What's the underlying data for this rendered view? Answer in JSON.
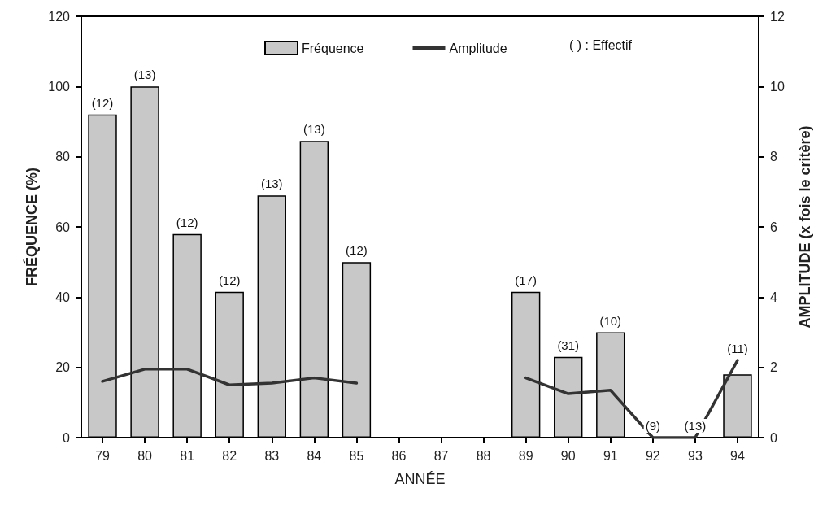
{
  "chart_data": {
    "type": "bar",
    "xlabel": "ANNÉE",
    "ylabel": "FRÉQUENCE (%)",
    "y2label": "AMPLITUDE (x fois le critère)",
    "categories": [
      "79",
      "80",
      "81",
      "82",
      "83",
      "84",
      "85",
      "86",
      "87",
      "88",
      "89",
      "90",
      "91",
      "92",
      "93",
      "94"
    ],
    "series": [
      {
        "name": "Fréquence",
        "color": "#c8c8c8",
        "values": [
          92,
          100,
          58,
          41.5,
          69,
          84.5,
          50,
          null,
          null,
          null,
          41.5,
          23,
          30,
          null,
          null,
          18
        ]
      },
      {
        "name": "Amplitude",
        "type": "line",
        "axis": "y2",
        "color": "#333333",
        "values": [
          1.6,
          1.95,
          1.95,
          1.5,
          1.55,
          1.7,
          1.55,
          null,
          null,
          null,
          1.7,
          1.25,
          1.35,
          0,
          0,
          2.2
        ]
      }
    ],
    "ylim": [
      0,
      120
    ],
    "yticks": [
      0,
      20,
      40,
      60,
      80,
      100,
      120
    ],
    "y2lim": [
      0,
      12
    ],
    "y2ticks": [
      0,
      2,
      4,
      6,
      8,
      10,
      12
    ],
    "annotations": [
      "( ) : Effectif",
      {
        "text": "(12)",
        "x": "79",
        "y": 92
      },
      {
        "text": "(13)",
        "x": "80",
        "y": 100
      },
      {
        "text": "(12)",
        "x": "81",
        "y": 58
      },
      {
        "text": "(12)",
        "x": "82",
        "y": 41.5
      },
      {
        "text": "(13)",
        "x": "83",
        "y": 69
      },
      {
        "text": "(13)",
        "x": "84",
        "y": 84.5
      },
      {
        "text": "(12)",
        "x": "85",
        "y": 50
      },
      {
        "text": "(17)",
        "x": "89",
        "y": 41.5
      },
      {
        "text": "(31)",
        "x": "90",
        "y": 23
      },
      {
        "text": "(10)",
        "x": "91",
        "y": 30
      },
      {
        "text": "(9)",
        "x": "92",
        "y": 0
      },
      {
        "text": "(13)",
        "x": "93",
        "y": 0
      },
      {
        "text": "(11)",
        "x": "94",
        "y": 22
      }
    ],
    "legend": "top",
    "grid": false,
    "marker": "none",
    "line_style": "solid"
  }
}
